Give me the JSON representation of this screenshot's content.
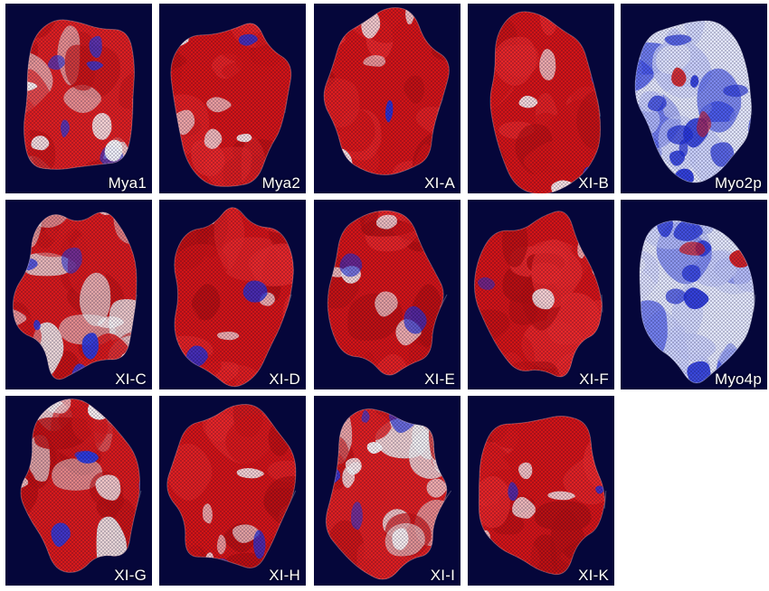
{
  "panels": [
    {
      "label": "Mya1",
      "scheme": "mixed"
    },
    {
      "label": "Mya2",
      "scheme": "red"
    },
    {
      "label": "XI-A",
      "scheme": "red"
    },
    {
      "label": "XI-B",
      "scheme": "red"
    },
    {
      "label": "Myo2p",
      "scheme": "blue"
    },
    {
      "label": "XI-C",
      "scheme": "mixed-red"
    },
    {
      "label": "XI-D",
      "scheme": "red"
    },
    {
      "label": "XI-E",
      "scheme": "red"
    },
    {
      "label": "XI-F",
      "scheme": "red"
    },
    {
      "label": "Myo4p",
      "scheme": "blue"
    },
    {
      "label": "XI-G",
      "scheme": "mixed-red"
    },
    {
      "label": "XI-H",
      "scheme": "red"
    },
    {
      "label": "XI-I",
      "scheme": "mixed"
    },
    {
      "label": "XI-K",
      "scheme": "red"
    }
  ],
  "colors": {
    "background": "#05063a",
    "negative": "#e01818",
    "neutral": "#f2f2f2",
    "positive": "#1a2be0"
  }
}
